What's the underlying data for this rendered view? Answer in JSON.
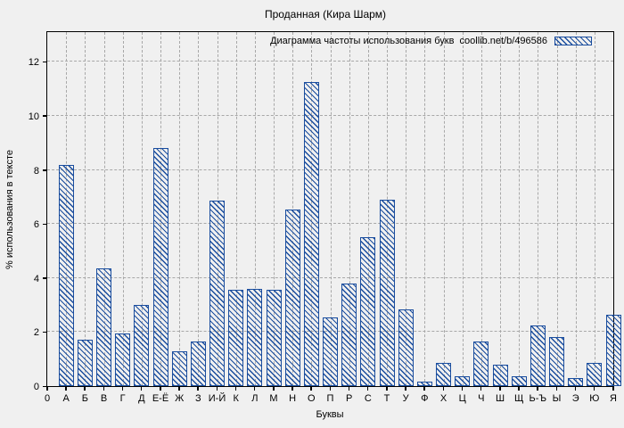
{
  "figure": {
    "title": "Проданная (Кира Шарм)",
    "background_color": "#f0f0f0"
  },
  "legend": {
    "label": "Диаграмма частоты использования букв  coollib.net/b/496586",
    "swatch_icon": "blue-backslash-hatch-swatch"
  },
  "axes": {
    "x": {
      "label": "Буквы"
    },
    "y": {
      "label": "% использования в тексте"
    }
  },
  "colors": {
    "bar_hatch": "#1a4d9e",
    "grid": "#a8a8a8",
    "frame": "#000000",
    "background": "#f0f0f0"
  },
  "chart_data": {
    "type": "bar",
    "title": "Проданная (Кира Шарм)",
    "xlabel": "Буквы",
    "ylabel": "% использования в тексте",
    "x_tick_labels": [
      "0",
      "А",
      "Б",
      "В",
      "Г",
      "Д",
      "Е-Ё",
      "Ж",
      "З",
      "И-Й",
      "К",
      "Л",
      "М",
      "Н",
      "О",
      "П",
      "Р",
      "С",
      "Т",
      "У",
      "Ф",
      "Х",
      "Ц",
      "Ч",
      "Ш",
      "Щ",
      "Ь-Ъ",
      "Ы",
      "Э",
      "Ю",
      "Я"
    ],
    "categories": [
      "А",
      "Б",
      "В",
      "Г",
      "Д",
      "Е-Ё",
      "Ж",
      "З",
      "И-Й",
      "К",
      "Л",
      "М",
      "Н",
      "О",
      "П",
      "Р",
      "С",
      "Т",
      "У",
      "Ф",
      "Х",
      "Ц",
      "Ч",
      "Ш",
      "Щ",
      "Ь-Ъ",
      "Ы",
      "Э",
      "Ю",
      "Я"
    ],
    "values": [
      8.2,
      1.7,
      4.35,
      1.95,
      3.0,
      8.8,
      1.3,
      1.65,
      6.85,
      3.55,
      3.6,
      3.55,
      6.55,
      11.25,
      2.55,
      3.8,
      5.5,
      6.9,
      2.85,
      0.15,
      0.85,
      0.35,
      1.65,
      0.8,
      0.35,
      2.25,
      1.8,
      0.3,
      0.85,
      2.65
    ],
    "y_ticks": [
      0,
      2,
      4,
      6,
      8,
      10,
      12
    ],
    "ylim": [
      0,
      13.1
    ],
    "grid": true,
    "hatch": "backslash-diagonal",
    "legend_position": "top-right",
    "legend_label": "Диаграмма частоты использования букв  coollib.net/b/496586"
  }
}
